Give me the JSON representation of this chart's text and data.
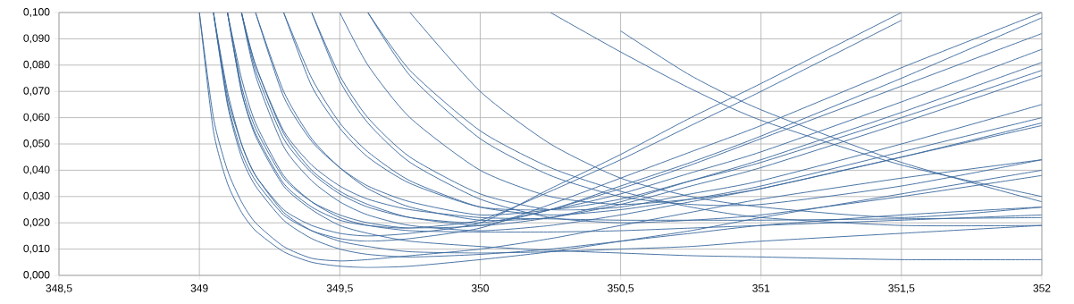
{
  "chart_data": {
    "type": "line",
    "x": [
      349.0,
      349.05,
      349.1,
      349.15,
      349.2,
      349.3,
      349.4,
      349.5,
      349.6,
      349.75,
      350,
      350.25,
      350.5,
      350.75,
      351,
      351.5,
      352
    ],
    "xlim": [
      348.5,
      352
    ],
    "ylim": [
      0,
      0.1
    ],
    "xticks": [
      {
        "value": 348.5,
        "label": "348,5"
      },
      349,
      {
        "value": 349.5,
        "label": "349,5"
      },
      350,
      {
        "value": 350.5,
        "label": "350,5"
      },
      351,
      {
        "value": 351.5,
        "label": "351,5"
      },
      352
    ],
    "yticks": [
      {
        "value": 0,
        "label": "0,000"
      },
      {
        "value": 0.01,
        "label": "0,010"
      },
      {
        "value": 0.02,
        "label": "0,020"
      },
      {
        "value": 0.03,
        "label": "0,030"
      },
      {
        "value": 0.04,
        "label": "0,040"
      },
      {
        "value": 0.05,
        "label": "0,050"
      },
      {
        "value": 0.06,
        "label": "0,060"
      },
      {
        "value": 0.07,
        "label": "0,070"
      },
      {
        "value": 0.08,
        "label": "0,080"
      },
      {
        "value": 0.09,
        "label": "0,090"
      },
      {
        "value": 0.1,
        "label": "0,100"
      }
    ],
    "grid": true,
    "marker": "none",
    "line_style": "solid",
    "series": [
      {
        "color": "#3d6a9e",
        "values": [
          0.1,
          0.055,
          0.035,
          0.024,
          0.017,
          0.009,
          0.005,
          0.0035,
          0.003,
          0.0035,
          0.006,
          0.009,
          0.013,
          0.017,
          0.022,
          0.031,
          0.04
        ]
      },
      {
        "color": "#3d6a9e",
        "values": [
          0.1,
          0.06,
          0.04,
          0.028,
          0.02,
          0.011,
          0.0065,
          0.0055,
          0.006,
          0.0075,
          0.01,
          0.014,
          0.019,
          0.024,
          0.029,
          0.037,
          0.044
        ]
      },
      {
        "color": "#3d6a9e",
        "values": [
          null,
          0.1,
          0.065,
          0.045,
          0.034,
          0.021,
          0.014,
          0.01,
          0.008,
          0.007,
          0.008,
          0.01,
          0.013,
          0.016,
          0.019,
          0.023,
          0.026
        ]
      },
      {
        "color": "#3d6a9e",
        "values": [
          null,
          null,
          0.1,
          0.07,
          0.053,
          0.034,
          0.025,
          0.019,
          0.016,
          0.013,
          0.011,
          0.0095,
          0.0085,
          0.0075,
          0.007,
          0.006,
          0.006
        ]
      },
      {
        "color": "#3d6a9e",
        "values": [
          null,
          0.1,
          0.07,
          0.05,
          0.038,
          0.024,
          0.017,
          0.013,
          0.011,
          0.009,
          0.0085,
          0.009,
          0.01,
          0.011,
          0.013,
          0.016,
          0.019
        ]
      },
      {
        "color": "#3d6a9e",
        "values": [
          null,
          null,
          null,
          0.1,
          0.08,
          0.055,
          0.042,
          0.034,
          0.029,
          0.025,
          0.022,
          0.0215,
          0.021,
          0.021,
          0.021,
          0.0215,
          0.022
        ]
      },
      {
        "color": "#3d6a9e",
        "values": [
          null,
          null,
          0.1,
          0.075,
          0.058,
          0.038,
          0.028,
          0.022,
          0.019,
          0.017,
          0.0165,
          0.0165,
          0.017,
          0.018,
          0.019,
          0.021,
          0.023
        ]
      },
      {
        "color": "#3d6a9e",
        "values": [
          null,
          0.1,
          0.068,
          0.05,
          0.038,
          0.025,
          0.019,
          0.016,
          0.015,
          0.016,
          0.02,
          0.033,
          0.046,
          0.06,
          0.073,
          0.1,
          null
        ]
      },
      {
        "color": "#3d6a9e",
        "values": [
          null,
          null,
          0.1,
          0.07,
          0.054,
          0.035,
          0.026,
          0.021,
          0.019,
          0.018,
          0.021,
          0.032,
          0.044,
          0.057,
          0.07,
          0.097,
          null
        ]
      },
      {
        "color": "#3d6a9e",
        "values": [
          null,
          0.1,
          0.066,
          0.047,
          0.036,
          0.023,
          0.017,
          0.014,
          0.013,
          0.014,
          0.018,
          0.027,
          0.037,
          0.047,
          0.057,
          0.079,
          0.1
        ]
      },
      {
        "color": "#3d6a9e",
        "values": [
          null,
          null,
          null,
          0.1,
          0.078,
          0.052,
          0.039,
          0.031,
          0.026,
          0.022,
          0.02,
          0.025,
          0.034,
          0.043,
          0.053,
          0.075,
          0.098
        ]
      },
      {
        "color": "#3d6a9e",
        "values": [
          null,
          null,
          0.1,
          0.072,
          0.056,
          0.037,
          0.028,
          0.023,
          0.02,
          0.018,
          0.019,
          0.025,
          0.033,
          0.042,
          0.052,
          0.072,
          0.092
        ]
      },
      {
        "color": "#3d6a9e",
        "values": [
          null,
          null,
          null,
          null,
          0.1,
          0.068,
          0.051,
          0.041,
          0.034,
          0.028,
          0.023,
          0.025,
          0.031,
          0.039,
          0.047,
          0.066,
          0.086
        ]
      },
      {
        "color": "#3d6a9e",
        "values": [
          null,
          null,
          null,
          0.1,
          0.08,
          0.054,
          0.04,
          0.032,
          0.027,
          0.022,
          0.019,
          0.022,
          0.028,
          0.036,
          0.044,
          0.062,
          0.081
        ]
      },
      {
        "color": "#3d6a9e",
        "values": [
          null,
          null,
          null,
          null,
          null,
          0.1,
          0.072,
          0.056,
          0.045,
          0.035,
          0.026,
          0.025,
          0.029,
          0.036,
          0.043,
          0.06,
          0.078
        ]
      },
      {
        "color": "#3d6a9e",
        "values": [
          null,
          null,
          null,
          null,
          0.1,
          0.07,
          0.052,
          0.041,
          0.033,
          0.026,
          0.021,
          0.022,
          0.027,
          0.034,
          0.041,
          0.058,
          0.076
        ]
      },
      {
        "color": "#3d6a9e",
        "values": [
          null,
          null,
          null,
          null,
          null,
          null,
          0.1,
          0.076,
          0.06,
          0.045,
          0.031,
          0.025,
          0.026,
          0.031,
          0.036,
          0.05,
          0.065
        ]
      },
      {
        "color": "#3d6a9e",
        "values": [
          null,
          null,
          null,
          null,
          null,
          0.1,
          0.075,
          0.058,
          0.047,
          0.036,
          0.026,
          0.023,
          0.025,
          0.029,
          0.034,
          0.047,
          0.06
        ]
      },
      {
        "color": "#3d6a9e",
        "values": [
          null,
          null,
          null,
          null,
          null,
          null,
          null,
          0.1,
          0.08,
          0.06,
          0.04,
          0.03,
          0.027,
          0.029,
          0.033,
          0.045,
          0.058
        ]
      },
      {
        "color": "#3d6a9e",
        "values": [
          null,
          null,
          null,
          0.1,
          0.076,
          0.049,
          0.036,
          0.028,
          0.023,
          0.019,
          0.017,
          0.019,
          0.023,
          0.028,
          0.033,
          0.045,
          0.057
        ]
      },
      {
        "color": "#3d6a9e",
        "values": [
          null,
          null,
          null,
          null,
          null,
          null,
          null,
          null,
          0.1,
          0.076,
          0.052,
          0.038,
          0.03,
          0.027,
          0.027,
          0.034,
          0.044
        ]
      },
      {
        "color": "#3d6a9e",
        "values": [
          null,
          null,
          null,
          null,
          null,
          null,
          0.1,
          0.074,
          0.058,
          0.043,
          0.029,
          0.022,
          0.02,
          0.021,
          0.023,
          0.03,
          0.038
        ]
      },
      {
        "color": "#3d6a9e",
        "values": [
          null,
          null,
          null,
          null,
          null,
          null,
          null,
          null,
          null,
          null,
          null,
          0.1,
          0.085,
          0.071,
          0.059,
          0.042,
          0.03
        ]
      },
      {
        "color": "#3d6a9e",
        "values": [
          null,
          null,
          null,
          null,
          null,
          null,
          null,
          null,
          null,
          null,
          null,
          null,
          0.093,
          0.076,
          0.063,
          0.043,
          0.028
        ]
      },
      {
        "color": "#3d6a9e",
        "values": [
          null,
          null,
          null,
          null,
          null,
          null,
          null,
          null,
          null,
          0.1,
          0.07,
          0.05,
          0.037,
          0.03,
          0.026,
          0.022,
          0.026
        ]
      },
      {
        "color": "#3d6a9e",
        "values": [
          null,
          null,
          null,
          null,
          null,
          null,
          null,
          null,
          0.1,
          0.078,
          0.055,
          0.041,
          0.032,
          0.026,
          0.022,
          0.019,
          0.019
        ]
      }
    ]
  }
}
